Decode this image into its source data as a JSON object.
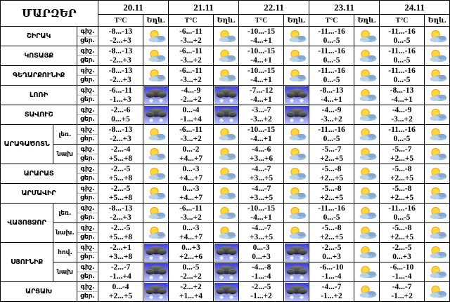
{
  "chart_data": {
    "type": "table",
    "title": "ՄԱՐԶԵՐ",
    "dates": [
      "20.11",
      "21.11",
      "22.11",
      "23.11",
      "24.11"
    ],
    "subheaders": {
      "temp": "T°C",
      "weather": "Եղև."
    },
    "time_labels": {
      "night": "գիշ.",
      "day": "ցեր."
    },
    "icon_legend": {
      "pc": "sun-behind-cloud",
      "snow": "snow-cloud"
    },
    "regions": [
      {
        "name": "ՇԻՐԱԿ",
        "zones": [
          {
            "zone": null,
            "days": [
              {
                "night": "-8...-13",
                "day": "-2...+3",
                "icon": "pc"
              },
              {
                "night": "-6...-11",
                "day": "-3...+2",
                "icon": "pc"
              },
              {
                "night": "-10...-15",
                "day": "-4...+1",
                "icon": "pc"
              },
              {
                "night": "-11...-16",
                "day": "0...-5",
                "icon": "pc"
              },
              {
                "night": "-11...-16",
                "day": "0...-5",
                "icon": "pc"
              }
            ]
          }
        ]
      },
      {
        "name": "ԿՈՏԱՅՔ",
        "zones": [
          {
            "zone": null,
            "days": [
              {
                "night": "-8...-13",
                "day": "-2...+3",
                "icon": "pc"
              },
              {
                "night": "-6...-11",
                "day": "-3...+2",
                "icon": "pc"
              },
              {
                "night": "-10...-15",
                "day": "-4...+1",
                "icon": "pc"
              },
              {
                "night": "-11...-16",
                "day": "0...-5",
                "icon": "pc"
              },
              {
                "night": "-11...-16",
                "day": "0...-5",
                "icon": "pc"
              }
            ]
          }
        ]
      },
      {
        "name": "ԳԵՂԱՐՔՈՒՆԻՔ",
        "zones": [
          {
            "zone": null,
            "days": [
              {
                "night": "-8...-13",
                "day": "-2...+3",
                "icon": "pc"
              },
              {
                "night": "-6...-11",
                "day": "-3...+2",
                "icon": "pc"
              },
              {
                "night": "-10...-15",
                "day": "-4...+1",
                "icon": "pc"
              },
              {
                "night": "-11...-16",
                "day": "0...-5",
                "icon": "pc"
              },
              {
                "night": "-11...-16",
                "day": "0...-5",
                "icon": "pc"
              }
            ]
          }
        ]
      },
      {
        "name": "ԼՈՌԻ",
        "zones": [
          {
            "zone": null,
            "days": [
              {
                "night": "-6...-11",
                "day": "-1...+3",
                "icon": "snow"
              },
              {
                "night": "-4...-9",
                "day": "-2...+2",
                "icon": "snow"
              },
              {
                "night": "-7...-12",
                "day": "-4...+1",
                "icon": "snow"
              },
              {
                "night": "-8...-13",
                "day": "-4...+1",
                "icon": "pc"
              },
              {
                "night": "-8...-13",
                "day": "-4...+1",
                "icon": "pc"
              }
            ]
          }
        ]
      },
      {
        "name": "ՏԱՎՈՒՇ",
        "zones": [
          {
            "zone": null,
            "days": [
              {
                "night": "-2...-6",
                "day": "0...+5",
                "icon": "snow"
              },
              {
                "night": "0...-4",
                "day": "-1...+4",
                "icon": "snow"
              },
              {
                "night": "-3...-7",
                "day": "-3...+2",
                "icon": "snow"
              },
              {
                "night": "-4...-9",
                "day": "-3...+2",
                "icon": "pc"
              },
              {
                "night": "-4...-9",
                "day": "-3...+2",
                "icon": "pc"
              }
            ]
          }
        ]
      },
      {
        "name": "ԱՐԱԳԱԾՈՏՆ",
        "zones": [
          {
            "zone": "լեռ.",
            "days": [
              {
                "night": "-8...-13",
                "day": "-2...+3",
                "icon": "pc"
              },
              {
                "night": "-6...-11",
                "day": "-3...+2",
                "icon": "pc"
              },
              {
                "night": "-10...-15",
                "day": "-4...+1",
                "icon": "pc"
              },
              {
                "night": "-11...-16",
                "day": "0...-5",
                "icon": "pc"
              },
              {
                "night": "-11...-16",
                "day": "0...-5",
                "icon": "pc"
              }
            ]
          },
          {
            "zone": "նախ",
            "days": [
              {
                "night": "-2...-4",
                "day": "+5...+8",
                "icon": "pc"
              },
              {
                "night": "0...-2",
                "day": "+4...+7",
                "icon": "pc"
              },
              {
                "night": "-4...-6",
                "day": "+3...+6",
                "icon": "pc"
              },
              {
                "night": "-5...-7",
                "day": "+2...+5",
                "icon": "pc"
              },
              {
                "night": "-5...-7",
                "day": "+2...+5",
                "icon": "pc"
              }
            ]
          }
        ]
      },
      {
        "name": "ԱՐԱՐԱՏ",
        "zones": [
          {
            "zone": null,
            "days": [
              {
                "night": "-2...-5",
                "day": "+5...+8",
                "icon": "pc"
              },
              {
                "night": "0...-3",
                "day": "+4...+7",
                "icon": "pc"
              },
              {
                "night": "-4...-7",
                "day": "+3...+5",
                "icon": "pc"
              },
              {
                "night": "-5...-8",
                "day": "+2...+5",
                "icon": "pc"
              },
              {
                "night": "-5...-8",
                "day": "+2...+5",
                "icon": "pc"
              }
            ]
          }
        ]
      },
      {
        "name": "ԱՐՄԱՎԻՐ",
        "zones": [
          {
            "zone": null,
            "days": [
              {
                "night": "-2...-5",
                "day": "+5...+8",
                "icon": "pc"
              },
              {
                "night": "0...-3",
                "day": "+4...+7",
                "icon": "pc"
              },
              {
                "night": "-4...-7",
                "day": "+3...+5",
                "icon": "pc"
              },
              {
                "night": "-5...-8",
                "day": "+2...+5",
                "icon": "pc"
              },
              {
                "night": "-5...-8",
                "day": "+2...+5",
                "icon": "pc"
              }
            ]
          }
        ]
      },
      {
        "name": "ՎԱՅՈՑՁՈՐ",
        "zones": [
          {
            "zone": "լեռ.",
            "days": [
              {
                "night": "-8...-13",
                "day": "-2...+3",
                "icon": "pc"
              },
              {
                "night": "-6...-11",
                "day": "-3...+2",
                "icon": "pc"
              },
              {
                "night": "-10...-15",
                "day": "-4...+1",
                "icon": "pc"
              },
              {
                "night": "-11...-16",
                "day": "0...-5",
                "icon": "pc"
              },
              {
                "night": "-11...-16",
                "day": "0...-5",
                "icon": "pc"
              }
            ]
          },
          {
            "zone": "նախ.",
            "days": [
              {
                "night": "-2...-5",
                "day": "+5...+8",
                "icon": "pc"
              },
              {
                "night": "0...-3",
                "day": "+4...+7",
                "icon": "pc"
              },
              {
                "night": "-4...-7",
                "day": "+3...+5",
                "icon": "pc"
              },
              {
                "night": "-5...-8",
                "day": "+2...+5",
                "icon": "pc"
              },
              {
                "night": "-5...-8",
                "day": "+2...+5",
                "icon": "pc"
              }
            ]
          }
        ]
      },
      {
        "name": "ՍՅՈՒՆԻՔ",
        "zones": [
          {
            "zone": "հով.",
            "days": [
              {
                "night": "-2...+1",
                "day": "+3...+8",
                "icon": "snow"
              },
              {
                "night": "0...+3",
                "day": "+2...+6",
                "icon": "snow"
              },
              {
                "night": "0...-3",
                "day": "0...+3",
                "icon": "snow"
              },
              {
                "night": "-2...-5",
                "day": "0...+3",
                "icon": "pc"
              },
              {
                "night": "-2...-5",
                "day": "0...+3",
                "icon": "pc"
              }
            ]
          },
          {
            "zone": "նախ",
            "days": [
              {
                "night": "-2...-7",
                "day": "-1...+4",
                "icon": "snow"
              },
              {
                "night": "0...-5",
                "day": "-2...+2",
                "icon": "snow"
              },
              {
                "night": "-4...-8",
                "day": "-1...-4",
                "icon": "snow"
              },
              {
                "night": "-6...-10",
                "day": "-1...-4",
                "icon": "pc"
              },
              {
                "night": "-6...-10",
                "day": "-1...-4",
                "icon": "pc"
              }
            ]
          }
        ]
      },
      {
        "name": "ԱՐՑԱԽ",
        "zones": [
          {
            "zone": null,
            "days": [
              {
                "night": "0...-4",
                "day": "+2...+5",
                "icon": "snow"
              },
              {
                "night": "-2...+2",
                "day": "+1...+4",
                "icon": "snow"
              },
              {
                "night": "-2...-5",
                "day": "-1...+2",
                "icon": "snow"
              },
              {
                "night": "-4...-7",
                "day": "-1...+2",
                "icon": "pc"
              },
              {
                "night": "-4...-7",
                "day": "-1...+2",
                "icon": "pc"
              }
            ]
          }
        ]
      }
    ]
  },
  "colors": {
    "border": "#000000",
    "sun": "#ffd83d",
    "sun_stroke": "#f0a000",
    "cloud_light": "#b8d2ea",
    "cloud_mid": "#9abce0",
    "snow_sky_top": "#3c3cd9",
    "snow_sky_bottom": "#bcc6f4",
    "snow_cloud_dark": "#1f1f1f",
    "snowflake": "#ffffff"
  }
}
